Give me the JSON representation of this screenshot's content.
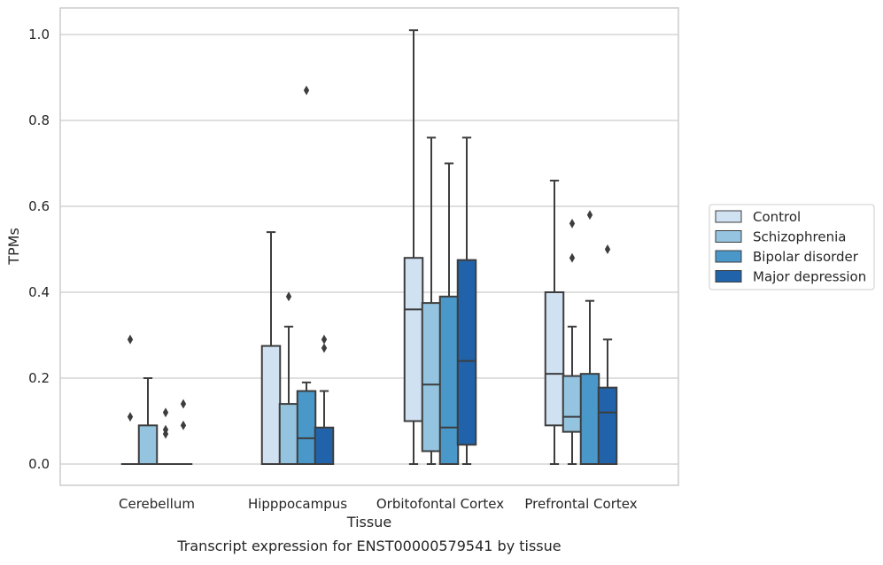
{
  "caption": "Transcript expression for ENST00000579541 by tissue",
  "chart_data": {
    "type": "box",
    "title": "",
    "xlabel": "Tissue",
    "ylabel": "TPMs",
    "ylim": [
      -0.05,
      1.06
    ],
    "yticks": [
      "0.0",
      "0.2",
      "0.4",
      "0.6",
      "0.8",
      "1.0"
    ],
    "grid": "horizontal",
    "legend_position": "right",
    "categories": [
      "Cerebellum",
      "Hipppocampus",
      "Orbitofontal Cortex",
      "Prefrontal Cortex"
    ],
    "series": [
      {
        "name": "Control",
        "color": "#d0e1f2",
        "boxes": [
          {
            "category": "Cerebellum",
            "min": 0.0,
            "q1": 0.0,
            "median": 0.0,
            "q3": 0.0,
            "max": 0.0,
            "outliers": [
              0.29,
              0.11
            ]
          },
          {
            "category": "Hipppocampus",
            "min": 0.0,
            "q1": 0.0,
            "median": 0.0,
            "q3": 0.275,
            "max": 0.54,
            "outliers": []
          },
          {
            "category": "Orbitofontal Cortex",
            "min": 0.0,
            "q1": 0.1,
            "median": 0.36,
            "q3": 0.48,
            "max": 1.01,
            "outliers": []
          },
          {
            "category": "Prefrontal Cortex",
            "min": 0.0,
            "q1": 0.09,
            "median": 0.21,
            "q3": 0.4,
            "max": 0.66,
            "outliers": []
          }
        ]
      },
      {
        "name": "Schizophrenia",
        "color": "#94c4df",
        "boxes": [
          {
            "category": "Cerebellum",
            "min": 0.0,
            "q1": 0.0,
            "median": 0.0,
            "q3": 0.09,
            "max": 0.2,
            "outliers": []
          },
          {
            "category": "Hipppocampus",
            "min": 0.0,
            "q1": 0.0,
            "median": 0.0,
            "q3": 0.14,
            "max": 0.32,
            "outliers": [
              0.39
            ]
          },
          {
            "category": "Orbitofontal Cortex",
            "min": 0.0,
            "q1": 0.03,
            "median": 0.185,
            "q3": 0.375,
            "max": 0.76,
            "outliers": []
          },
          {
            "category": "Prefrontal Cortex",
            "min": 0.0,
            "q1": 0.075,
            "median": 0.11,
            "q3": 0.205,
            "max": 0.32,
            "outliers": [
              0.56,
              0.48
            ]
          }
        ]
      },
      {
        "name": "Bipolar disorder",
        "color": "#4a98c9",
        "boxes": [
          {
            "category": "Cerebellum",
            "min": 0.0,
            "q1": 0.0,
            "median": 0.0,
            "q3": 0.0,
            "max": 0.0,
            "outliers": [
              0.12,
              0.08,
              0.07
            ]
          },
          {
            "category": "Hipppocampus",
            "min": 0.0,
            "q1": 0.0,
            "median": 0.06,
            "q3": 0.17,
            "max": 0.19,
            "outliers": [
              0.87
            ]
          },
          {
            "category": "Orbitofontal Cortex",
            "min": 0.0,
            "q1": 0.0,
            "median": 0.085,
            "q3": 0.39,
            "max": 0.7,
            "outliers": []
          },
          {
            "category": "Prefrontal Cortex",
            "min": 0.0,
            "q1": 0.0,
            "median": 0.0,
            "q3": 0.21,
            "max": 0.38,
            "outliers": [
              0.58
            ]
          }
        ]
      },
      {
        "name": "Major depression",
        "color": "#2163aa",
        "boxes": [
          {
            "category": "Cerebellum",
            "min": 0.0,
            "q1": 0.0,
            "median": 0.0,
            "q3": 0.0,
            "max": 0.0,
            "outliers": [
              0.14,
              0.09
            ]
          },
          {
            "category": "Hipppocampus",
            "min": 0.0,
            "q1": 0.0,
            "median": 0.0,
            "q3": 0.085,
            "max": 0.17,
            "outliers": [
              0.29,
              0.27
            ]
          },
          {
            "category": "Orbitofontal Cortex",
            "min": 0.0,
            "q1": 0.045,
            "median": 0.24,
            "q3": 0.475,
            "max": 0.76,
            "outliers": []
          },
          {
            "category": "Prefrontal Cortex",
            "min": 0.0,
            "q1": 0.0,
            "median": 0.12,
            "q3": 0.178,
            "max": 0.29,
            "outliers": [
              0.5
            ]
          }
        ]
      }
    ]
  }
}
